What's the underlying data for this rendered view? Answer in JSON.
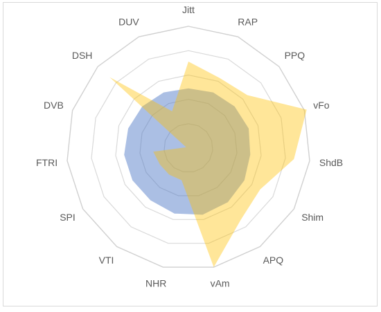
{
  "chart_data": {
    "type": "radar",
    "categories": [
      "Jitt",
      "RAP",
      "PPQ",
      "vFo",
      "ShdB",
      "Shim",
      "APQ",
      "vAm",
      "NHR",
      "VTI",
      "SPI",
      "FTRI",
      "DVB",
      "DSH",
      "DUV"
    ],
    "rmax": 1.0,
    "ring_steps": [
      0.2,
      0.4,
      0.6,
      0.8,
      1.0
    ],
    "grid": true,
    "legend": "none",
    "series": [
      {
        "color": "#4472c4",
        "opacity": 0.45,
        "values": [
          0.49,
          0.5,
          0.51,
          0.52,
          0.51,
          0.53,
          0.55,
          0.56,
          0.55,
          0.53,
          0.53,
          0.53,
          0.52,
          0.51,
          0.5
        ]
      },
      {
        "color": "#ffc000",
        "opacity": 0.4,
        "values": [
          0.71,
          0.63,
          0.65,
          1.02,
          0.87,
          0.68,
          0.73,
          1.0,
          0.27,
          0.27,
          0.27,
          0.29,
          0.02,
          0.87,
          0.33
        ]
      }
    ]
  }
}
